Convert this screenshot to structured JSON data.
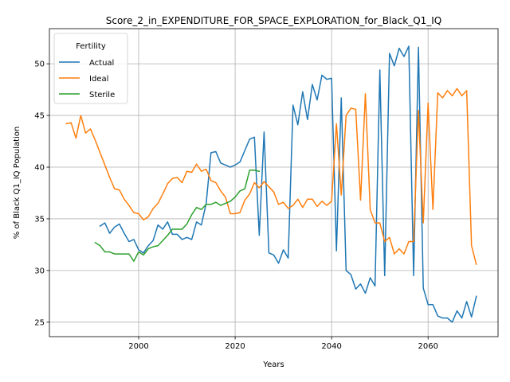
{
  "chart_data": {
    "type": "line",
    "title": "Score_2_in_EXPENDITURE_FOR_SPACE_EXPLORATION_for_Black_Q1_IQ",
    "xlabel": "Years",
    "ylabel": "% of Black Q1_IQ Population",
    "xlim": [
      1981.5,
      2074.5
    ],
    "ylim": [
      23.6,
      53.4
    ],
    "xticks": [
      2000,
      2020,
      2040,
      2060
    ],
    "yticks": [
      25,
      30,
      35,
      40,
      45,
      50
    ],
    "grid": true,
    "legend": {
      "title": "Fertility",
      "placement": "top-left"
    },
    "series": [
      {
        "name": "Actual",
        "color": "#1f77b4",
        "x": [
          1992,
          1993,
          1994,
          1995,
          1996,
          1997,
          1998,
          1999,
          2000,
          2001,
          2002,
          2003,
          2004,
          2005,
          2006,
          2007,
          2008,
          2009,
          2010,
          2011,
          2012,
          2013,
          2014,
          2015,
          2016,
          2017,
          2018,
          2019,
          2020,
          2021,
          2022,
          2023,
          2024,
          2025,
          2026,
          2027,
          2028,
          2029,
          2030,
          2031,
          2032,
          2033,
          2034,
          2035,
          2036,
          2037,
          2038,
          2039,
          2040,
          2041,
          2042,
          2043,
          2044,
          2045,
          2046,
          2047,
          2048,
          2049,
          2050,
          2051,
          2052,
          2053,
          2054,
          2055,
          2056,
          2057,
          2058,
          2059,
          2060,
          2061,
          2062,
          2063,
          2064,
          2065,
          2066,
          2067,
          2068,
          2069,
          2070
        ],
        "values": [
          34.3,
          34.6,
          33.6,
          34.2,
          34.5,
          33.6,
          32.8,
          33.0,
          32.0,
          31.7,
          32.4,
          32.9,
          34.4,
          34.0,
          34.7,
          33.5,
          33.5,
          33.0,
          33.2,
          33.0,
          34.7,
          34.4,
          36.5,
          41.4,
          41.5,
          40.4,
          40.2,
          40.0,
          40.2,
          40.5,
          41.6,
          42.7,
          42.9,
          33.4,
          43.4,
          31.7,
          31.5,
          30.7,
          32.0,
          31.2,
          46.0,
          44.1,
          47.3,
          44.6,
          48.0,
          46.5,
          48.9,
          48.5,
          48.6,
          31.9,
          46.7,
          30.0,
          29.6,
          28.2,
          28.7,
          27.8,
          29.3,
          28.5,
          49.4,
          29.5,
          51.0,
          49.8,
          51.5,
          50.7,
          51.7,
          29.5,
          51.6,
          28.3,
          26.7,
          26.7,
          25.6,
          25.4,
          25.4,
          25.0,
          26.1,
          25.4,
          27.0,
          25.5,
          27.5
        ]
      },
      {
        "name": "Ideal",
        "color": "#ff7f0e",
        "x": [
          1985,
          1986,
          1987,
          1988,
          1989,
          1990,
          1991,
          1992,
          1993,
          1994,
          1995,
          1996,
          1997,
          1998,
          1999,
          2000,
          2001,
          2002,
          2003,
          2004,
          2005,
          2006,
          2007,
          2008,
          2009,
          2010,
          2011,
          2012,
          2013,
          2014,
          2015,
          2016,
          2017,
          2018,
          2019,
          2020,
          2021,
          2022,
          2023,
          2024,
          2025,
          2026,
          2027,
          2028,
          2029,
          2030,
          2031,
          2032,
          2033,
          2034,
          2035,
          2036,
          2037,
          2038,
          2039,
          2040,
          2041,
          2042,
          2043,
          2044,
          2045,
          2046,
          2047,
          2048,
          2049,
          2050,
          2051,
          2052,
          2053,
          2054,
          2055,
          2056,
          2057,
          2058,
          2059,
          2060,
          2061,
          2062,
          2063,
          2064,
          2065,
          2066,
          2067,
          2068,
          2069,
          2070
        ],
        "values": [
          44.2,
          44.3,
          42.8,
          45.0,
          43.3,
          43.7,
          42.6,
          41.4,
          40.2,
          39.0,
          37.9,
          37.8,
          36.9,
          36.3,
          35.6,
          35.5,
          34.9,
          35.2,
          36.0,
          36.5,
          37.4,
          38.4,
          38.9,
          39.0,
          38.5,
          39.6,
          39.5,
          40.3,
          39.6,
          39.8,
          38.7,
          38.5,
          37.7,
          37.1,
          35.5,
          35.5,
          35.6,
          36.8,
          37.4,
          38.5,
          38.0,
          38.6,
          38.1,
          37.6,
          36.4,
          36.6,
          36.0,
          36.3,
          36.9,
          36.1,
          36.9,
          36.9,
          36.2,
          36.7,
          36.3,
          36.7,
          44.2,
          37.3,
          45.0,
          45.7,
          45.6,
          36.8,
          47.1,
          35.9,
          34.6,
          34.6,
          32.8,
          33.2,
          31.6,
          32.1,
          31.6,
          32.8,
          32.8,
          45.5,
          34.6,
          46.2,
          35.9,
          47.2,
          46.7,
          47.4,
          46.9,
          47.6,
          46.9,
          47.4,
          32.4,
          30.6
        ]
      },
      {
        "name": "Sterile",
        "color": "#2ca02c",
        "x": [
          1991,
          1992,
          1993,
          1994,
          1995,
          1996,
          1997,
          1998,
          1999,
          2000,
          2001,
          2002,
          2003,
          2004,
          2005,
          2006,
          2007,
          2008,
          2009,
          2010,
          2011,
          2012,
          2013,
          2014,
          2015,
          2016,
          2017,
          2018,
          2019,
          2020,
          2021,
          2022,
          2023,
          2024,
          2025
        ],
        "values": [
          32.7,
          32.4,
          31.8,
          31.8,
          31.6,
          31.6,
          31.6,
          31.6,
          30.9,
          31.8,
          31.5,
          32.1,
          32.3,
          32.4,
          32.9,
          33.4,
          34.0,
          34.0,
          34.0,
          34.5,
          35.4,
          36.1,
          35.9,
          36.4,
          36.4,
          36.6,
          36.3,
          36.5,
          36.7,
          37.1,
          37.7,
          37.9,
          39.7,
          39.7,
          39.6
        ]
      }
    ]
  }
}
